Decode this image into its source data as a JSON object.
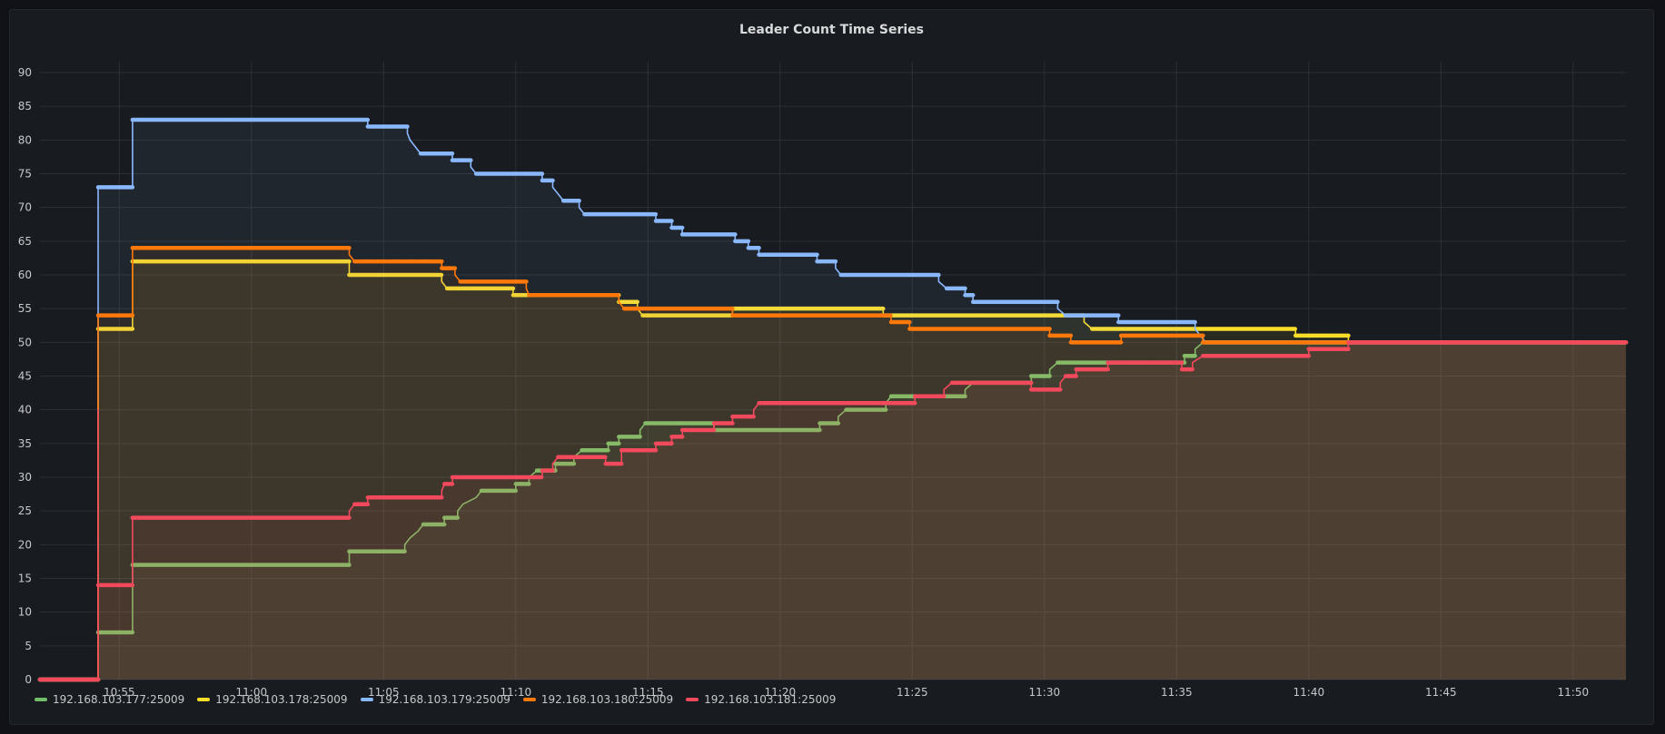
{
  "chart_data": {
    "type": "line",
    "title": "Leader Count Time Series",
    "xlabel": "",
    "ylabel": "",
    "ylim": [
      0,
      90
    ],
    "xlim": [
      "10:52",
      "11:52"
    ],
    "yticks": [
      0,
      5,
      10,
      15,
      20,
      25,
      30,
      35,
      40,
      45,
      50,
      55,
      60,
      65,
      70,
      75,
      80,
      85,
      90
    ],
    "xticks": [
      "10:55",
      "11:00",
      "11:05",
      "11:10",
      "11:15",
      "11:20",
      "11:25",
      "11:30",
      "11:35",
      "11:40",
      "11:45",
      "11:50"
    ],
    "grid": true,
    "legend_position": "bottom-left",
    "step": true,
    "series": [
      {
        "name": "192.168.103.177:25009",
        "color": "#73bf69",
        "points": [
          [
            "10:52",
            0
          ],
          [
            "10:54.2",
            0
          ],
          [
            "10:54.2",
            7
          ],
          [
            "10:55.5",
            7
          ],
          [
            "10:55.5",
            17
          ],
          [
            "11:03.7",
            17
          ],
          [
            "11:03.7",
            19
          ],
          [
            "11:05.8",
            19
          ],
          [
            "11:05.8",
            20
          ],
          [
            "11:06",
            21
          ],
          [
            "11:06.3",
            22
          ],
          [
            "11:06.5",
            23
          ],
          [
            "11:07.3",
            23
          ],
          [
            "11:07.3",
            24
          ],
          [
            "11:07.8",
            24
          ],
          [
            "11:07.8",
            25
          ],
          [
            "11:08",
            26
          ],
          [
            "11:08.5",
            27
          ],
          [
            "11:08.7",
            28
          ],
          [
            "11:10",
            28
          ],
          [
            "11:10",
            29
          ],
          [
            "11:10.5",
            29
          ],
          [
            "11:10.5",
            30
          ],
          [
            "11:10.8",
            31
          ],
          [
            "11:11.5",
            31
          ],
          [
            "11:11.5",
            32
          ],
          [
            "11:12.2",
            32
          ],
          [
            "11:12.2",
            33
          ],
          [
            "11:12.5",
            34
          ],
          [
            "11:13.5",
            34
          ],
          [
            "11:13.5",
            35
          ],
          [
            "11:13.9",
            35
          ],
          [
            "11:13.9",
            36
          ],
          [
            "11:14.7",
            36
          ],
          [
            "11:14.7",
            37
          ],
          [
            "11:14.9",
            38
          ],
          [
            "11:17.5",
            38
          ],
          [
            "11:17.5",
            37
          ],
          [
            "11:21.5",
            37
          ],
          [
            "11:21.5",
            38
          ],
          [
            "11:22.2",
            38
          ],
          [
            "11:22.2",
            39
          ],
          [
            "11:22.5",
            40
          ],
          [
            "11:24",
            40
          ],
          [
            "11:24",
            41
          ],
          [
            "11:24.2",
            42
          ],
          [
            "11:25.5",
            42
          ],
          [
            "11:25.5",
            42
          ],
          [
            "11:27",
            42
          ],
          [
            "11:27",
            43
          ],
          [
            "11:27.3",
            44
          ],
          [
            "11:29.5",
            44
          ],
          [
            "11:29.5",
            45
          ],
          [
            "11:30.2",
            45
          ],
          [
            "11:30.2",
            46
          ],
          [
            "11:30.5",
            47
          ],
          [
            "11:31.7",
            47
          ],
          [
            "11:31.7",
            47
          ],
          [
            "11:35.3",
            47
          ],
          [
            "11:35.3",
            48
          ],
          [
            "11:35.7",
            48
          ],
          [
            "11:35.7",
            49
          ],
          [
            "11:36",
            50
          ],
          [
            "11:52",
            50
          ]
        ]
      },
      {
        "name": "192.168.103.178:25009",
        "color": "#fade2a",
        "points": [
          [
            "10:52",
            0
          ],
          [
            "10:54.2",
            0
          ],
          [
            "10:54.2",
            52
          ],
          [
            "10:55.5",
            52
          ],
          [
            "10:55.5",
            62
          ],
          [
            "11:03.7",
            62
          ],
          [
            "11:03.7",
            60
          ],
          [
            "11:07.2",
            60
          ],
          [
            "11:07.2",
            59
          ],
          [
            "11:07.4",
            58
          ],
          [
            "11:09.9",
            58
          ],
          [
            "11:09.9",
            57
          ],
          [
            "11:13.9",
            57
          ],
          [
            "11:13.9",
            56
          ],
          [
            "11:14.6",
            56
          ],
          [
            "11:14.6",
            55
          ],
          [
            "11:14.8",
            54
          ],
          [
            "11:18.2",
            54
          ],
          [
            "11:18.2",
            55
          ],
          [
            "11:23.9",
            55
          ],
          [
            "11:23.9",
            54
          ],
          [
            "11:31.5",
            54
          ],
          [
            "11:31.5",
            53
          ],
          [
            "11:31.8",
            52
          ],
          [
            "11:39.5",
            52
          ],
          [
            "11:39.5",
            51
          ],
          [
            "11:41.5",
            51
          ],
          [
            "11:41.5",
            50
          ],
          [
            "11:52",
            50
          ]
        ]
      },
      {
        "name": "192.168.103.179:25009",
        "color": "#8ab8ff",
        "points": [
          [
            "10:52",
            0
          ],
          [
            "10:54.2",
            0
          ],
          [
            "10:54.2",
            73
          ],
          [
            "10:55.5",
            73
          ],
          [
            "10:55.5",
            83
          ],
          [
            "11:04.4",
            83
          ],
          [
            "11:04.4",
            82
          ],
          [
            "11:05.9",
            82
          ],
          [
            "11:05.9",
            81
          ],
          [
            "11:06",
            80
          ],
          [
            "11:06.2",
            79
          ],
          [
            "11:06.4",
            78
          ],
          [
            "11:07.6",
            78
          ],
          [
            "11:07.6",
            77
          ],
          [
            "11:08.3",
            77
          ],
          [
            "11:08.3",
            76
          ],
          [
            "11:08.5",
            75
          ],
          [
            "11:11",
            75
          ],
          [
            "11:11",
            74
          ],
          [
            "11:11.4",
            74
          ],
          [
            "11:11.4",
            73
          ],
          [
            "11:11.6",
            72
          ],
          [
            "11:11.8",
            71
          ],
          [
            "11:12.4",
            71
          ],
          [
            "11:12.4",
            70
          ],
          [
            "11:12.6",
            69
          ],
          [
            "11:14.3",
            69
          ],
          [
            "11:14.3",
            69
          ],
          [
            "11:15.3",
            69
          ],
          [
            "11:15.3",
            68
          ],
          [
            "11:15.9",
            68
          ],
          [
            "11:15.9",
            67
          ],
          [
            "11:16.3",
            67
          ],
          [
            "11:16.3",
            66
          ],
          [
            "11:18.3",
            66
          ],
          [
            "11:18.3",
            65
          ],
          [
            "11:18.8",
            65
          ],
          [
            "11:18.8",
            64
          ],
          [
            "11:19.2",
            64
          ],
          [
            "11:19.2",
            63
          ],
          [
            "11:21.4",
            63
          ],
          [
            "11:21.4",
            62
          ],
          [
            "11:22.1",
            62
          ],
          [
            "11:22.1",
            61
          ],
          [
            "11:22.3",
            60
          ],
          [
            "11:26",
            60
          ],
          [
            "11:26",
            59
          ],
          [
            "11:26.3",
            58
          ],
          [
            "11:27",
            58
          ],
          [
            "11:27",
            57
          ],
          [
            "11:27.3",
            57
          ],
          [
            "11:27.3",
            56
          ],
          [
            "11:30.5",
            56
          ],
          [
            "11:30.5",
            55
          ],
          [
            "11:30.8",
            54
          ],
          [
            "11:32.8",
            54
          ],
          [
            "11:32.8",
            53
          ],
          [
            "11:35.7",
            53
          ],
          [
            "11:35.7",
            52
          ],
          [
            "11:35.9",
            51
          ],
          [
            "11:36.1",
            50
          ],
          [
            "11:52",
            50
          ]
        ]
      },
      {
        "name": "192.168.103.180:25009",
        "color": "#ff780a",
        "points": [
          [
            "10:52",
            0
          ],
          [
            "10:54.2",
            0
          ],
          [
            "10:54.2",
            54
          ],
          [
            "10:55.5",
            54
          ],
          [
            "10:55.5",
            64
          ],
          [
            "11:03.7",
            64
          ],
          [
            "11:03.7",
            63
          ],
          [
            "11:03.9",
            62
          ],
          [
            "11:07.2",
            62
          ],
          [
            "11:07.2",
            61
          ],
          [
            "11:07.7",
            61
          ],
          [
            "11:07.7",
            60
          ],
          [
            "11:07.9",
            59
          ],
          [
            "11:10.4",
            59
          ],
          [
            "11:10.4",
            58
          ],
          [
            "11:10.5",
            57
          ],
          [
            "11:13.9",
            57
          ],
          [
            "11:13.9",
            56
          ],
          [
            "11:14.1",
            55
          ],
          [
            "11:18.2",
            55
          ],
          [
            "11:18.2",
            54
          ],
          [
            "11:24.2",
            54
          ],
          [
            "11:24.2",
            53
          ],
          [
            "11:24.9",
            53
          ],
          [
            "11:24.9",
            52
          ],
          [
            "11:30.2",
            52
          ],
          [
            "11:30.2",
            51
          ],
          [
            "11:31",
            51
          ],
          [
            "11:31",
            50
          ],
          [
            "11:32.9",
            50
          ],
          [
            "11:32.9",
            51
          ],
          [
            "11:36",
            51
          ],
          [
            "11:36",
            50
          ],
          [
            "11:52",
            50
          ]
        ]
      },
      {
        "name": "192.168.103.181:25009",
        "color": "#f2495c",
        "points": [
          [
            "10:52",
            0
          ],
          [
            "10:54.2",
            0
          ],
          [
            "10:54.2",
            40
          ],
          [
            "10:54.2",
            14
          ],
          [
            "10:55.5",
            14
          ],
          [
            "10:55.5",
            24
          ],
          [
            "11:03.7",
            24
          ],
          [
            "11:03.7",
            25
          ],
          [
            "11:03.9",
            26
          ],
          [
            "11:04.4",
            26
          ],
          [
            "11:04.4",
            27
          ],
          [
            "11:07.2",
            27
          ],
          [
            "11:07.2",
            28
          ],
          [
            "11:07.3",
            29
          ],
          [
            "11:07.6",
            29
          ],
          [
            "11:07.6",
            30
          ],
          [
            "11:11",
            30
          ],
          [
            "11:11",
            31
          ],
          [
            "11:11.4",
            31
          ],
          [
            "11:11.4",
            32
          ],
          [
            "11:11.6",
            33
          ],
          [
            "11:13.4",
            33
          ],
          [
            "11:13.4",
            32
          ],
          [
            "11:14",
            32
          ],
          [
            "11:14",
            33
          ],
          [
            "11:14",
            34
          ],
          [
            "11:15.3",
            34
          ],
          [
            "11:15.3",
            35
          ],
          [
            "11:15.9",
            35
          ],
          [
            "11:15.9",
            36
          ],
          [
            "11:16.3",
            36
          ],
          [
            "11:16.3",
            37
          ],
          [
            "11:17.5",
            37
          ],
          [
            "11:17.5",
            38
          ],
          [
            "11:18.2",
            38
          ],
          [
            "11:18.2",
            39
          ],
          [
            "11:19",
            39
          ],
          [
            "11:19",
            40
          ],
          [
            "11:19.2",
            41
          ],
          [
            "11:25.1",
            41
          ],
          [
            "11:25.1",
            42
          ],
          [
            "11:26.2",
            42
          ],
          [
            "11:26.2",
            43
          ],
          [
            "11:26.5",
            44
          ],
          [
            "11:29.5",
            44
          ],
          [
            "11:29.5",
            43
          ],
          [
            "11:30.6",
            43
          ],
          [
            "11:30.6",
            44
          ],
          [
            "11:30.8",
            45
          ],
          [
            "11:31.2",
            45
          ],
          [
            "11:31.2",
            46
          ],
          [
            "11:32.4",
            46
          ],
          [
            "11:32.4",
            47
          ],
          [
            "11:35.2",
            47
          ],
          [
            "11:35.2",
            46
          ],
          [
            "11:35.6",
            46
          ],
          [
            "11:35.6",
            47
          ],
          [
            "11:36",
            48
          ],
          [
            "11:40",
            48
          ],
          [
            "11:40",
            49
          ],
          [
            "11:41.5",
            49
          ],
          [
            "11:41.5",
            50
          ],
          [
            "11:52",
            50
          ]
        ]
      }
    ]
  }
}
